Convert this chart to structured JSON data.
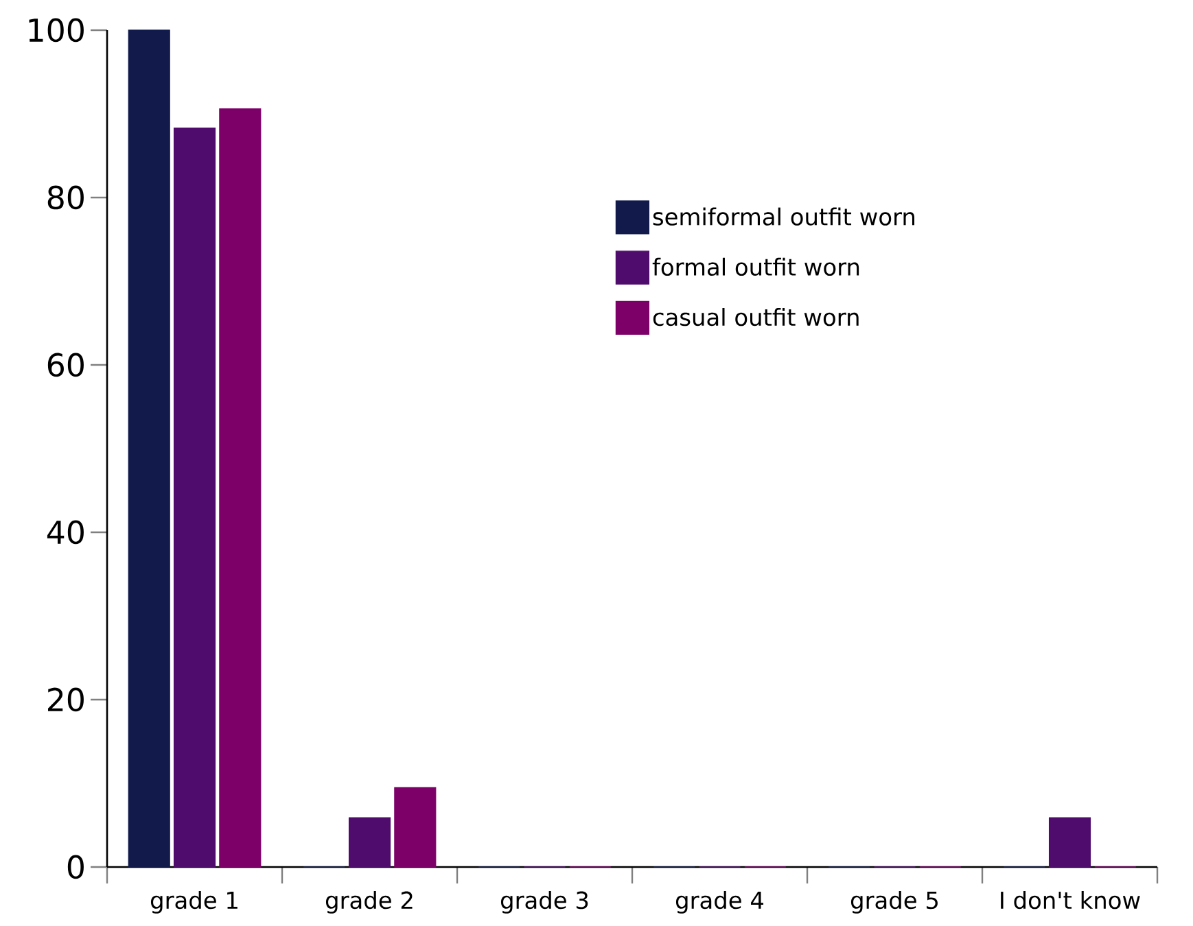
{
  "chart_data": {
    "type": "bar",
    "categories": [
      "grade 1",
      "grade 2",
      "grade 3",
      "grade 4",
      "grade 5",
      "I don't know"
    ],
    "series": [
      {
        "name": "semiformal outfit worn",
        "color": "#111a4a",
        "values": [
          100,
          0,
          0,
          0,
          0,
          0
        ]
      },
      {
        "name": "formal outfit worn",
        "color": "#4f0c6c",
        "values": [
          88.3,
          5.9,
          0,
          0,
          0,
          5.9
        ]
      },
      {
        "name": "casual outfit worn",
        "color": "#7d0068",
        "values": [
          90.6,
          9.5,
          0,
          0,
          0,
          0
        ]
      }
    ],
    "ylim": [
      0,
      100
    ],
    "yticks": [
      0,
      20,
      40,
      60,
      80,
      100
    ],
    "grid": false,
    "legend": "top right"
  }
}
